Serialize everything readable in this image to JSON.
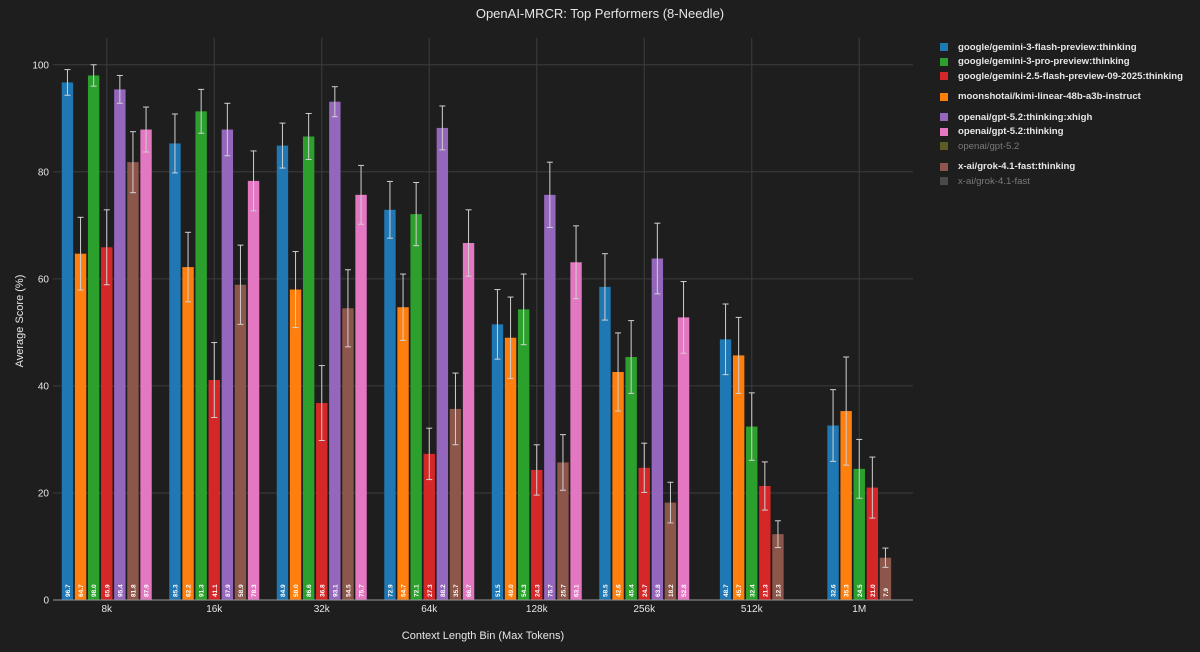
{
  "chart_data": {
    "type": "bar",
    "title": "OpenAI-MRCR: Top Performers (8-Needle)",
    "xlabel": "Context Length Bin (Max Tokens)",
    "ylabel": "Average Score (%)",
    "ylim": [
      0,
      105
    ],
    "yticks": [
      0,
      20,
      40,
      60,
      80,
      100
    ],
    "categories": [
      "8k",
      "16k",
      "32k",
      "64k",
      "128k",
      "256k",
      "512k",
      "1M"
    ],
    "series": [
      {
        "name": "google/gemini-3-flash-preview:thinking",
        "color": "#1f77b4",
        "values": [
          96.7,
          85.3,
          84.9,
          72.9,
          51.5,
          58.5,
          48.7,
          32.6
        ],
        "err": [
          2.4,
          5.5,
          4.2,
          5.3,
          6.5,
          6.2,
          6.6,
          6.7
        ]
      },
      {
        "name": "moonshotai/kimi-linear-48b-a3b-instruct",
        "color": "#ff7f0e",
        "values": [
          64.7,
          62.2,
          58.0,
          54.7,
          49.0,
          42.6,
          45.7,
          35.3
        ],
        "err": [
          6.8,
          6.5,
          7.1,
          6.2,
          7.6,
          7.3,
          7.1,
          10.1
        ]
      },
      {
        "name": "google/gemini-3-pro-preview:thinking",
        "color": "#2ca02c",
        "values": [
          98.0,
          91.3,
          86.6,
          72.1,
          54.3,
          45.4,
          32.4,
          24.5
        ],
        "err": [
          2.0,
          4.1,
          4.3,
          5.9,
          6.6,
          6.8,
          6.3,
          5.5
        ]
      },
      {
        "name": "google/gemini-2.5-flash-preview-09-2025:thinking",
        "color": "#d62728",
        "values": [
          65.9,
          41.1,
          36.8,
          27.3,
          24.3,
          24.7,
          21.3,
          21.0
        ],
        "err": [
          7.0,
          7.0,
          7.0,
          4.8,
          4.7,
          4.6,
          4.5,
          5.7
        ]
      },
      {
        "name": "openai/gpt-5.2:thinking:xhigh",
        "color": "#9467bd",
        "values": [
          95.4,
          87.9,
          93.1,
          88.2,
          75.7,
          63.8,
          null,
          null
        ],
        "err": [
          2.6,
          4.9,
          2.8,
          4.1,
          6.1,
          6.6,
          0,
          0
        ]
      },
      {
        "name": "x-ai/grok-4.1-fast:thinking",
        "color": "#8c564b",
        "values": [
          81.8,
          58.9,
          54.5,
          35.7,
          25.7,
          18.2,
          12.3,
          7.9
        ],
        "err": [
          5.7,
          7.4,
          7.2,
          6.7,
          5.2,
          3.8,
          2.5,
          1.8
        ]
      },
      {
        "name": "openai/gpt-5.2:thinking",
        "color": "#e377c2",
        "values": [
          87.9,
          78.3,
          75.7,
          66.7,
          63.1,
          52.8,
          null,
          null
        ],
        "err": [
          4.2,
          5.6,
          5.5,
          6.2,
          6.8,
          6.7,
          0,
          0
        ]
      }
    ],
    "legend": [
      {
        "label": "google/gemini-3-flash-preview:thinking",
        "color": "#1f77b4",
        "dim": false,
        "gap": false
      },
      {
        "label": "google/gemini-3-pro-preview:thinking",
        "color": "#2ca02c",
        "dim": false,
        "gap": false
      },
      {
        "label": "google/gemini-2.5-flash-preview-09-2025:thinking",
        "color": "#d62728",
        "dim": false,
        "gap": false
      },
      {
        "label": "moonshotai/kimi-linear-48b-a3b-instruct",
        "color": "#ff7f0e",
        "dim": false,
        "gap": true
      },
      {
        "label": "openai/gpt-5.2:thinking:xhigh",
        "color": "#9467bd",
        "dim": false,
        "gap": true
      },
      {
        "label": "openai/gpt-5.2:thinking",
        "color": "#e377c2",
        "dim": false,
        "gap": false
      },
      {
        "label": "openai/gpt-5.2",
        "color": "#5d5a22",
        "dim": true,
        "gap": false
      },
      {
        "label": "x-ai/grok-4.1-fast:thinking",
        "color": "#8c564b",
        "dim": false,
        "gap": true
      },
      {
        "label": "x-ai/grok-4.1-fast",
        "color": "#4a4a4a",
        "dim": true,
        "gap": false
      }
    ]
  }
}
